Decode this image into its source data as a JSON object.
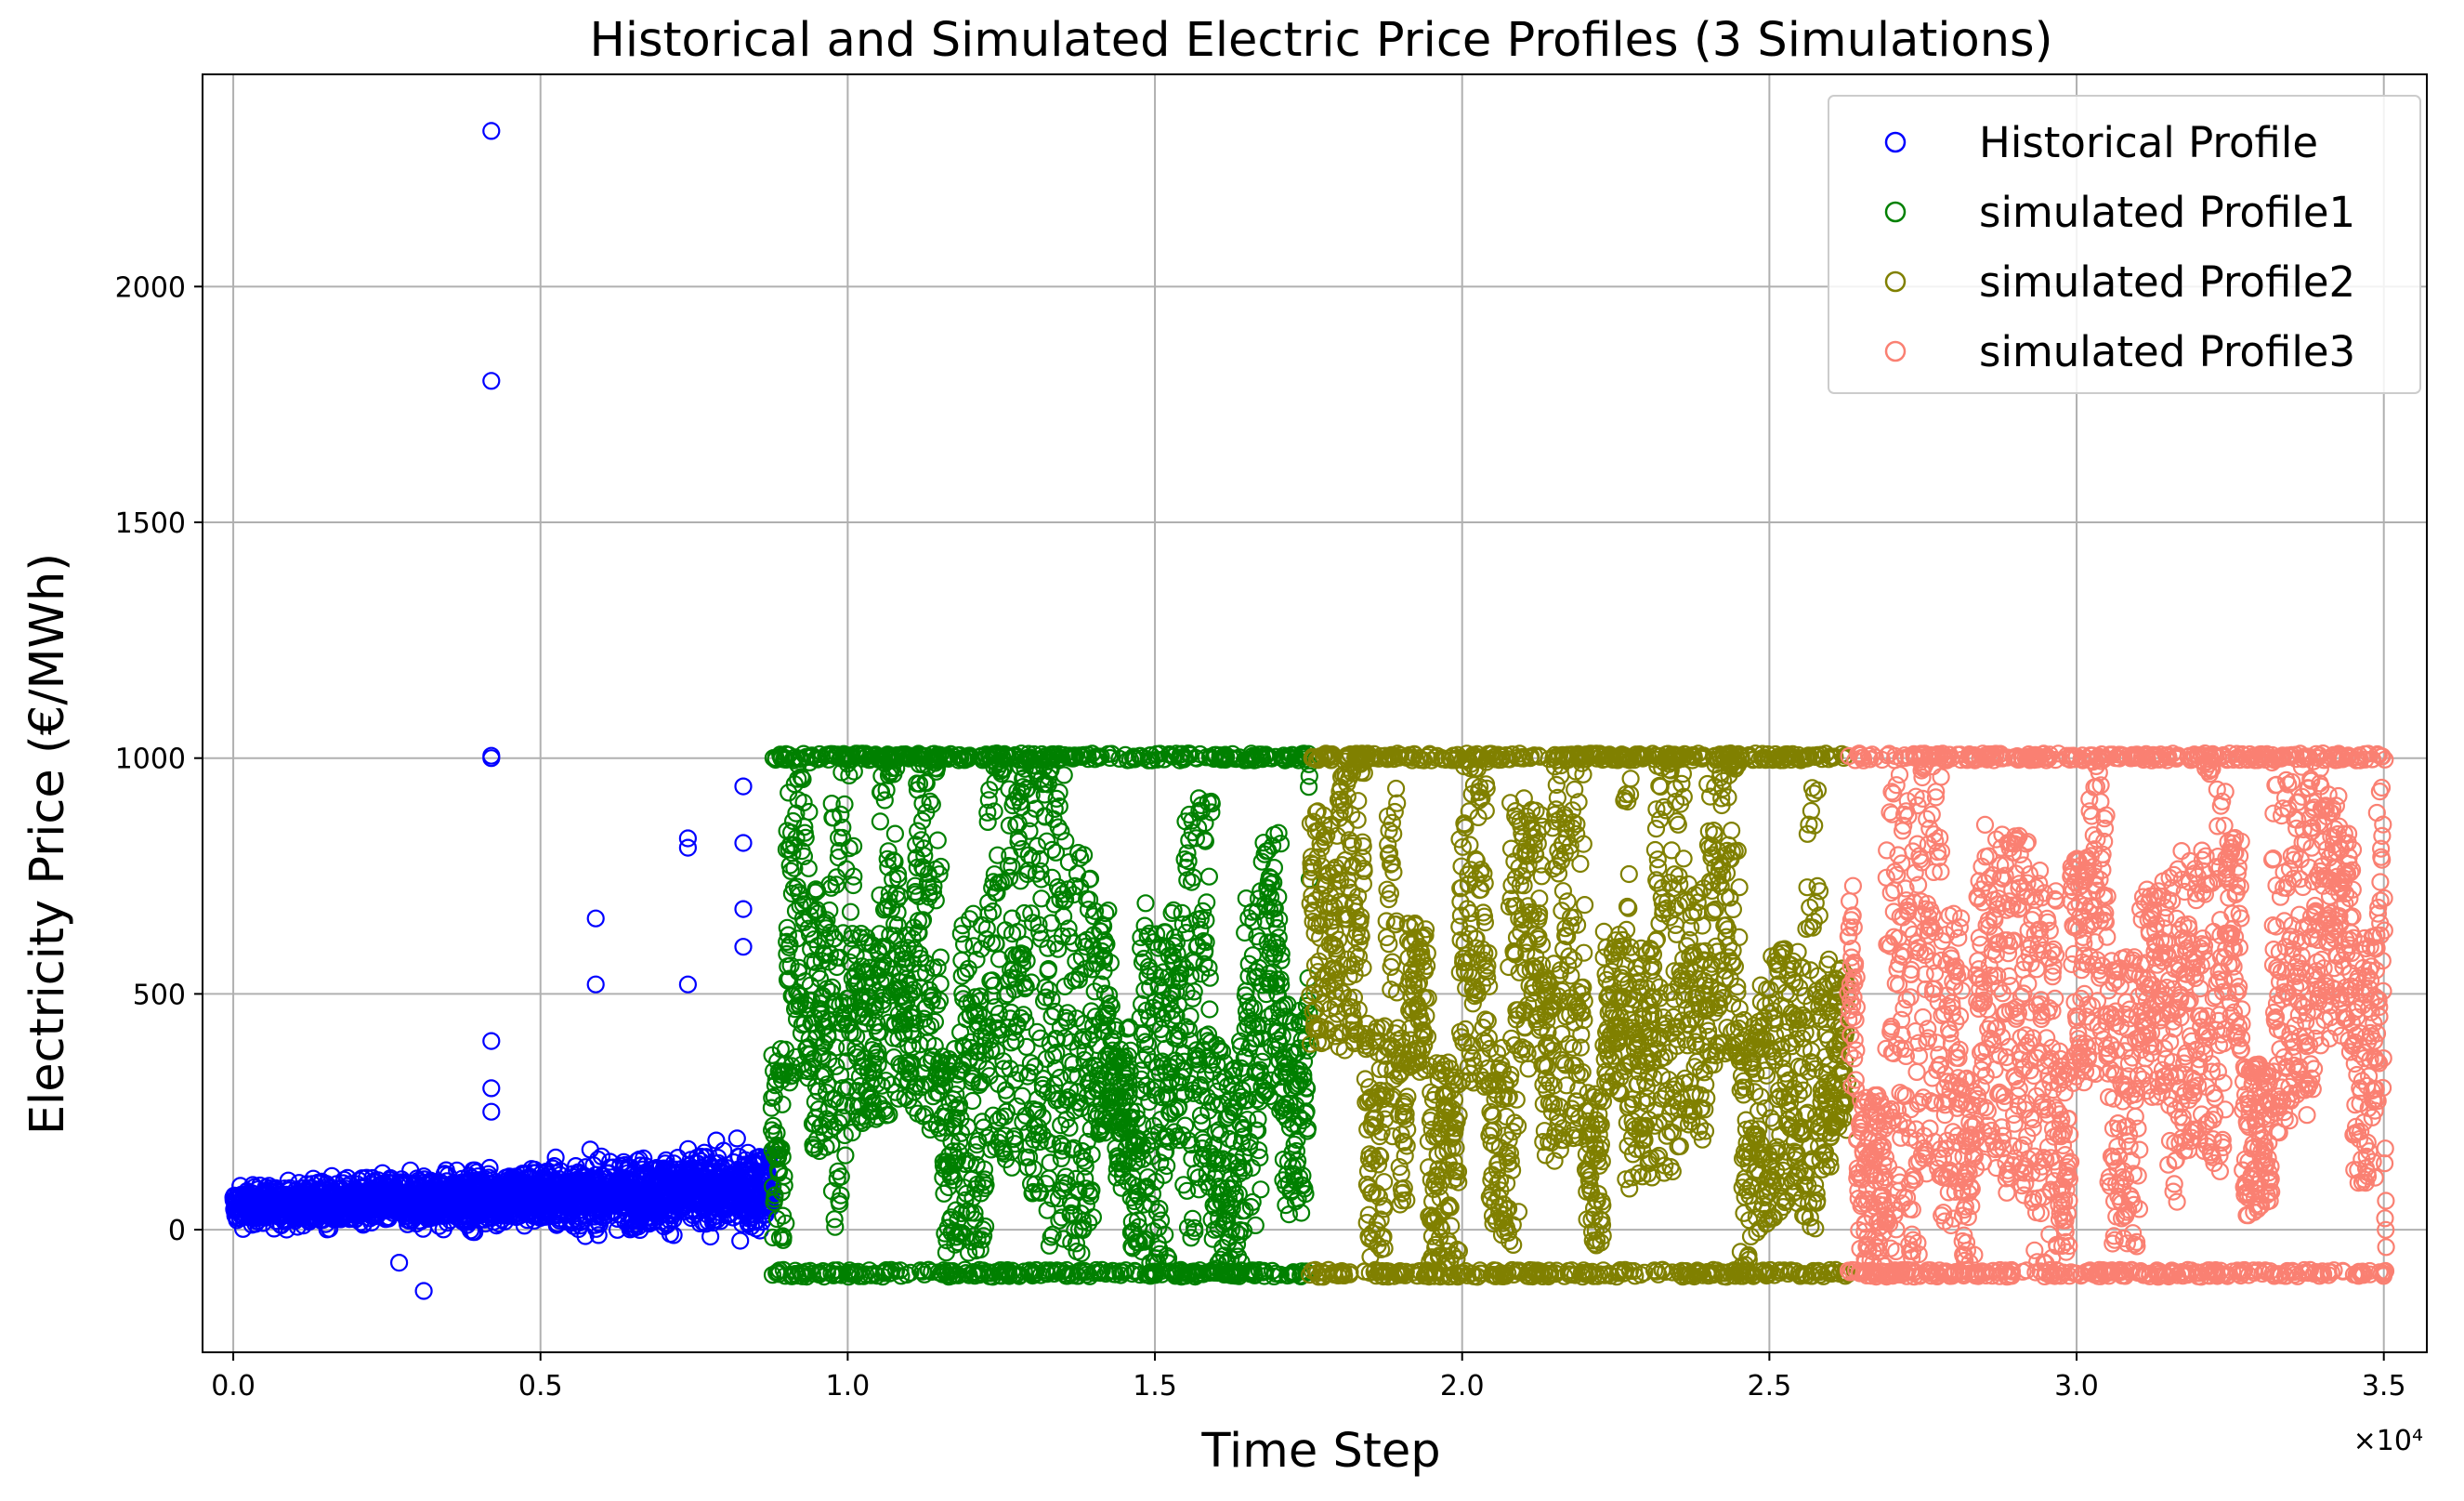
{
  "chart_data": {
    "type": "scatter",
    "title": "Historical and Simulated Electric Price Profiles (3 Simulations)",
    "xlabel": "Time Step",
    "ylabel": "Electricity Price (€/MWh)",
    "x_offset_label": "×10⁴",
    "xlim": [
      -0.05,
      3.57
    ],
    "ylim": [
      -260,
      2450
    ],
    "x_ticks": [
      0.0,
      0.5,
      1.0,
      1.5,
      2.0,
      2.5,
      3.0,
      3.5
    ],
    "x_tick_labels": [
      "0.0",
      "0.5",
      "1.0",
      "1.5",
      "2.0",
      "2.5",
      "3.0",
      "3.5"
    ],
    "y_ticks": [
      0,
      500,
      1000,
      1500,
      2000
    ],
    "y_tick_labels": [
      "0",
      "500",
      "1000",
      "1500",
      "2000"
    ],
    "grid": true,
    "legend_position": "top-right",
    "marker": "hollow-circle",
    "series": [
      {
        "name": "Historical Profile",
        "color": "#0000ff",
        "x_range": [
          0.0,
          0.876
        ],
        "typical_range": [
          -80,
          250
        ],
        "outliers": [
          [
            0.42,
            2330
          ],
          [
            0.42,
            1800
          ],
          [
            0.42,
            1005
          ],
          [
            0.42,
            1000
          ],
          [
            0.42,
            400
          ],
          [
            0.42,
            300
          ],
          [
            0.42,
            250
          ],
          [
            0.59,
            660
          ],
          [
            0.59,
            520
          ],
          [
            0.74,
            830
          ],
          [
            0.74,
            810
          ],
          [
            0.74,
            520
          ],
          [
            0.83,
            940
          ],
          [
            0.83,
            820
          ],
          [
            0.83,
            680
          ],
          [
            0.83,
            600
          ],
          [
            0.31,
            -130
          ],
          [
            0.27,
            -70
          ]
        ]
      },
      {
        "name": "simulated Profile1",
        "color": "#008000",
        "x_range": [
          0.876,
          1.752
        ],
        "min": -100,
        "max": 1010
      },
      {
        "name": "simulated Profile2",
        "color": "#808000",
        "x_range": [
          1.752,
          2.628
        ],
        "min": -100,
        "max": 1010
      },
      {
        "name": "simulated Profile3",
        "color": "#fa8072",
        "x_range": [
          2.628,
          3.504
        ],
        "min": -100,
        "max": 1010
      }
    ]
  }
}
